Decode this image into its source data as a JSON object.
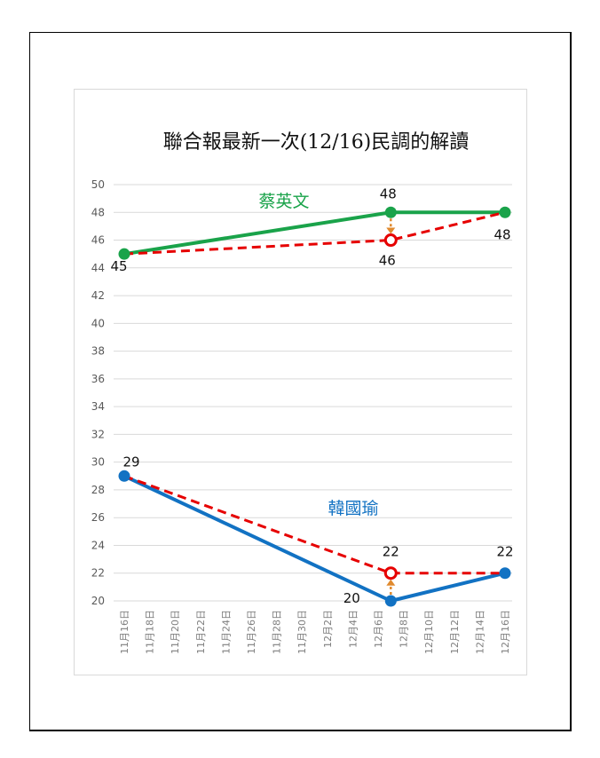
{
  "chart_data": {
    "type": "line",
    "title": "聯合報最新一次(12/16)民調的解讀",
    "ylim": [
      20,
      50
    ],
    "ytick_step": 2,
    "x_ticks": [
      "11月16日",
      "11月18日",
      "11月20日",
      "11月22日",
      "11月24日",
      "11月26日",
      "11月28日",
      "11月30日",
      "12月2日",
      "12月4日",
      "12月6日",
      "12月8日",
      "12月10日",
      "12月12日",
      "12月14日",
      "12月16日"
    ],
    "grid": true,
    "series": [
      {
        "name": "蔡英文",
        "style": "solid",
        "color": "#1aa34a",
        "points": [
          {
            "x": "11月16日",
            "y": 45
          },
          {
            "x": "12月7日",
            "y": 48
          },
          {
            "x": "12月16日",
            "y": 48
          }
        ],
        "labels": [
          "45",
          "48",
          "48"
        ]
      },
      {
        "name": "",
        "style": "dashed",
        "color": "#e60000",
        "points": [
          {
            "x": "11月16日",
            "y": 45
          },
          {
            "x": "12月7日",
            "y": 46
          },
          {
            "x": "12月16日",
            "y": 48
          }
        ],
        "labels": [
          "",
          "46",
          ""
        ]
      },
      {
        "name": "韓國瑜",
        "style": "solid",
        "color": "#1272c3",
        "points": [
          {
            "x": "11月16日",
            "y": 29
          },
          {
            "x": "12月7日",
            "y": 20
          },
          {
            "x": "12月16日",
            "y": 22
          }
        ],
        "labels": [
          "29",
          "20",
          "22"
        ]
      },
      {
        "name": "",
        "style": "dashed",
        "color": "#e60000",
        "points": [
          {
            "x": "11月16日",
            "y": 29
          },
          {
            "x": "12月7日",
            "y": 22
          },
          {
            "x": "12月16日",
            "y": 22
          }
        ],
        "labels": [
          "",
          "22",
          ""
        ]
      }
    ],
    "arrows": [
      {
        "x": "12月7日",
        "from": 48,
        "to": 46,
        "color": "#e08a2e"
      },
      {
        "x": "12月7日",
        "from": 20,
        "to": 22,
        "color": "#e08a2e"
      }
    ]
  }
}
